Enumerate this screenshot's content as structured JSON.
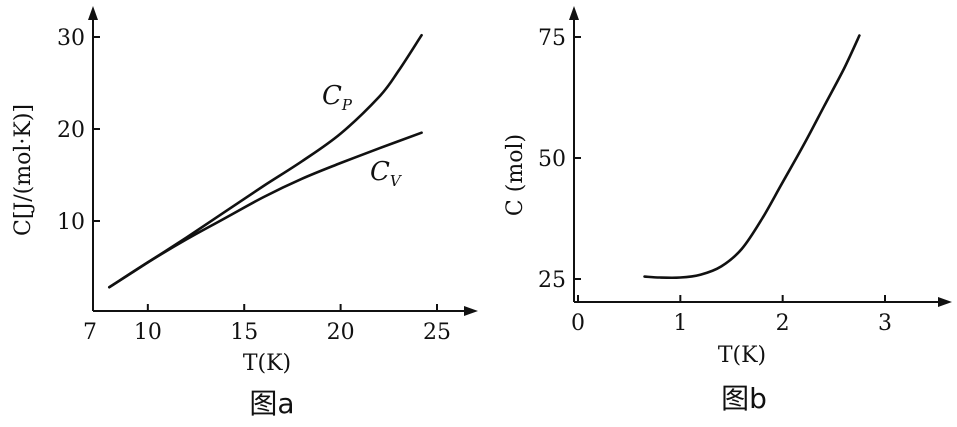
{
  "chart_data": [
    {
      "type": "line",
      "caption": "图a",
      "xlabel": "T(K)",
      "ylabel": "C[J/(mol·K)]",
      "xlim": [
        7,
        26
      ],
      "ylim": [
        0,
        32
      ],
      "xticks": [
        "7",
        "10",
        "15",
        "20",
        "25"
      ],
      "yticks": [
        "10",
        "20",
        "30"
      ],
      "series": [
        {
          "name": "CP",
          "x": [
            8,
            10,
            12,
            14,
            16,
            18,
            20,
            22,
            23,
            24.2
          ],
          "y": [
            2.8,
            5.5,
            8.2,
            11.0,
            13.8,
            16.5,
            19.5,
            23.5,
            26.3,
            30.2
          ]
        },
        {
          "name": "CV",
          "x": [
            8,
            10,
            12,
            14,
            16,
            18,
            20,
            22,
            24.2
          ],
          "y": [
            2.8,
            5.5,
            8.0,
            10.3,
            12.6,
            14.6,
            16.3,
            17.9,
            19.6
          ]
        }
      ]
    },
    {
      "type": "line",
      "caption": "图b",
      "xlabel": "T(K)",
      "ylabel": "C (mol)",
      "xlim": [
        0,
        3.6
      ],
      "ylim": [
        20,
        77
      ],
      "xticks": [
        "0",
        "1",
        "2",
        "3"
      ],
      "yticks": [
        "25",
        "50",
        "75"
      ],
      "series": [
        {
          "name": "",
          "x": [
            0.65,
            0.8,
            1.0,
            1.2,
            1.4,
            1.6,
            1.8,
            2.0,
            2.2,
            2.4,
            2.6,
            2.75
          ],
          "y": [
            25.5,
            25.3,
            25.3,
            25.9,
            27.6,
            31.2,
            37.5,
            45.0,
            52.5,
            60.5,
            68.5,
            75.3
          ]
        }
      ]
    }
  ]
}
